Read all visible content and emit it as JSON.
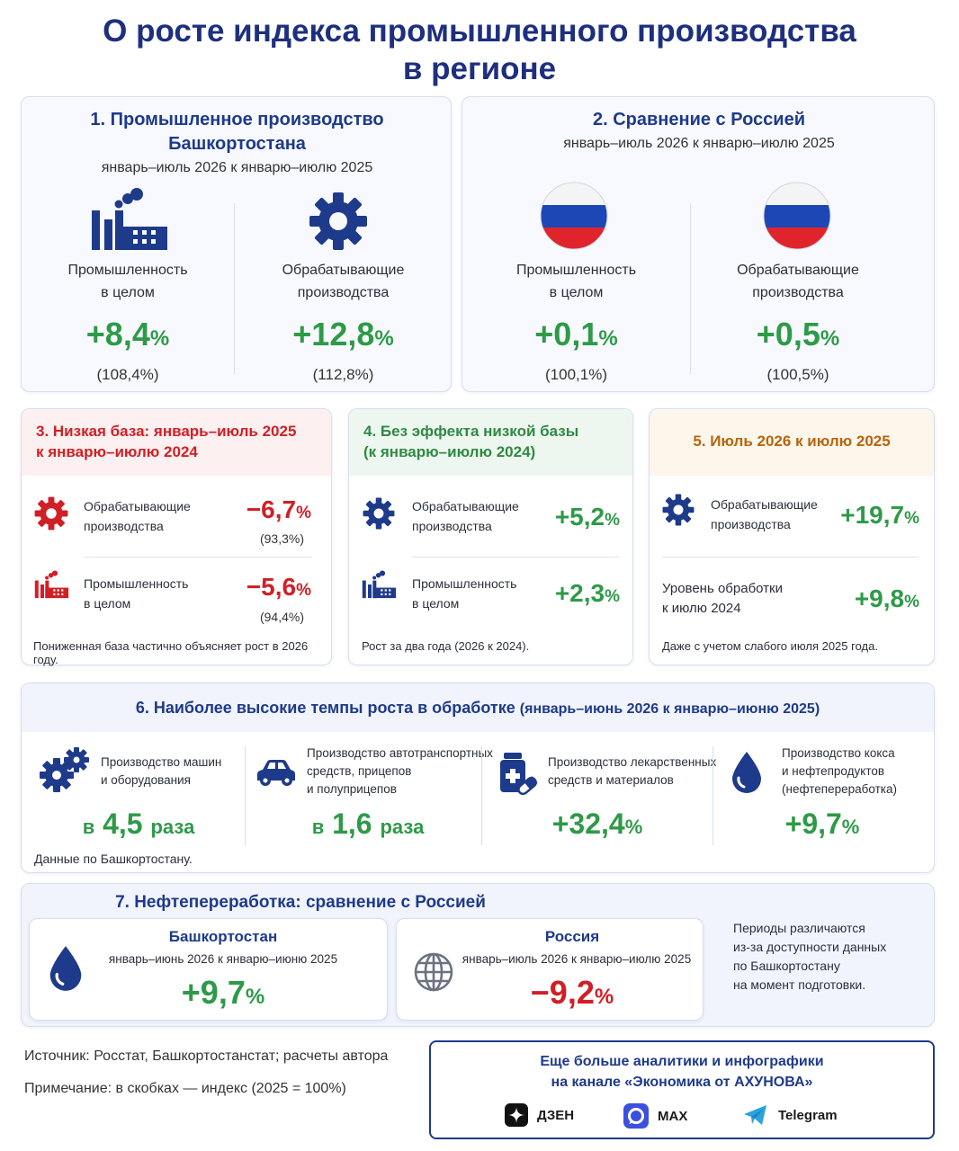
{
  "title": {
    "line1": "О росте индекса промышленного производства",
    "line2": "в регионе"
  },
  "colors": {
    "primary_blue": "#1e3a8a",
    "positive": "#2e9a48",
    "negative": "#d11f26",
    "brown": "#b8640e"
  },
  "s1": {
    "heading1": "1. Промышленное производство",
    "heading2": "Башкортостана",
    "period": "январь–июль 2026 к январю–июлю 2025",
    "left": {
      "icon": "factory-icon",
      "label1": "Промышленность",
      "label2": "в целом",
      "value": "+8,4",
      "unit": "%",
      "index": "(108,4%)"
    },
    "right": {
      "icon": "gear-icon",
      "label1": "Обрабатывающие",
      "label2": "производства",
      "value": "+12,8",
      "unit": "%",
      "index": "(112,8%)"
    }
  },
  "s2": {
    "heading": "2. Сравнение с Россией",
    "period": "январь–июль 2026 к январю–июлю 2025",
    "left": {
      "icon": "russia-flag-icon",
      "label1": "Промышленность",
      "label2": "в целом",
      "value": "+0,1",
      "unit": "%",
      "index": "(100,1%)"
    },
    "right": {
      "icon": "russia-flag-icon",
      "label1": "Обрабатывающие",
      "label2": "производства",
      "value": "+0,5",
      "unit": "%",
      "index": "(100,5%)"
    }
  },
  "s3": {
    "heading1": "3. Низкая база: январь–июль 2025",
    "heading2": "к январю–июлю 2024",
    "rows": [
      {
        "icon": "gear-icon",
        "label1": "Обрабатывающие",
        "label2": "производства",
        "value": "−6,7",
        "unit": "%",
        "index": "(93,3%)"
      },
      {
        "icon": "factory-icon",
        "label1": "Промышленность",
        "label2": "в целом",
        "value": "−5,6",
        "unit": "%",
        "index": "(94,4%)"
      }
    ],
    "note": "Пониженная база частично объясняет рост в 2026 году."
  },
  "s4": {
    "heading1": "4. Без эффекта низкой базы",
    "heading2": "(к январю–июлю 2024)",
    "rows": [
      {
        "icon": "gear-icon",
        "label1": "Обрабатывающие",
        "label2": "производства",
        "value": "+5,2",
        "unit": "%"
      },
      {
        "icon": "factory-icon",
        "label1": "Промышленность",
        "label2": "в целом",
        "value": "+2,3",
        "unit": "%"
      }
    ],
    "note": "Рост за два года (2026 к 2024)."
  },
  "s5": {
    "heading": "5. Июль 2026 к июлю 2025",
    "rows": [
      {
        "icon": "gear-icon",
        "label1": "Обрабатывающие",
        "label2": "производства",
        "value": "+19,7",
        "unit": "%"
      },
      {
        "label1": "Уровень обработки",
        "label2": "к июлю 2024",
        "value": "+9,8",
        "unit": "%"
      }
    ],
    "note": "Даже с учетом слабого июля 2025 года."
  },
  "s6": {
    "heading_main": "6. Наиболее высокие темпы роста в обработке",
    "heading_period": "(январь–июнь 2026 к январю–июню 2025)",
    "items": [
      {
        "icon": "gears-icon",
        "label1": "Производство машин",
        "label2": "и оборудования",
        "label3": "",
        "prefix": "в",
        "value": "4,5",
        "suffix": "раза"
      },
      {
        "icon": "car-icon",
        "label1": "Производство автотранспортных",
        "label2": "средств, прицепов",
        "label3": "и полуприцепов",
        "prefix": "в",
        "value": "1,6",
        "suffix": "раза"
      },
      {
        "icon": "medicine-icon",
        "label1": "Производство лекарственных",
        "label2": "средств и материалов",
        "label3": "",
        "prefix": "",
        "value": "+32,4",
        "suffix": "%"
      },
      {
        "icon": "oil-drop-icon",
        "label1": "Производство кокса",
        "label2": "и нефтепродуктов",
        "label3": "(нефтепереработка)",
        "prefix": "",
        "value": "+9,7",
        "suffix": "%"
      }
    ],
    "note": "Данные по Башкортостану."
  },
  "s7": {
    "heading": "7. Нефтепереработка: сравнение с Россией",
    "left": {
      "icon": "oil-drop-icon",
      "name": "Башкортостан",
      "period": "январь–июнь 2026 к январю–июню 2025",
      "value": "+9,7",
      "unit": "%"
    },
    "right": {
      "icon": "globe-icon",
      "name": "Россия",
      "period": "январь–июль 2026 к январю–июлю 2025",
      "value": "−9,2",
      "unit": "%"
    },
    "note": [
      "Периоды различаются",
      "из-за доступности данных",
      "по Башкортостану",
      "на момент подготовки."
    ]
  },
  "footer": {
    "source": "Источник: Росстат, Башкортостанстат; расчеты автора",
    "remark": "Примечание: в скобках — индекс (2025 = 100%)"
  },
  "promo": {
    "line1": "Еще больше аналитики и инфографики",
    "line2": "на канале «Экономика от АХУНОВА»",
    "links": [
      {
        "icon": "dzen-icon",
        "label": "ДЗЕН"
      },
      {
        "icon": "max-icon",
        "label": "MAX"
      },
      {
        "icon": "telegram-icon",
        "label": "Telegram"
      }
    ]
  }
}
